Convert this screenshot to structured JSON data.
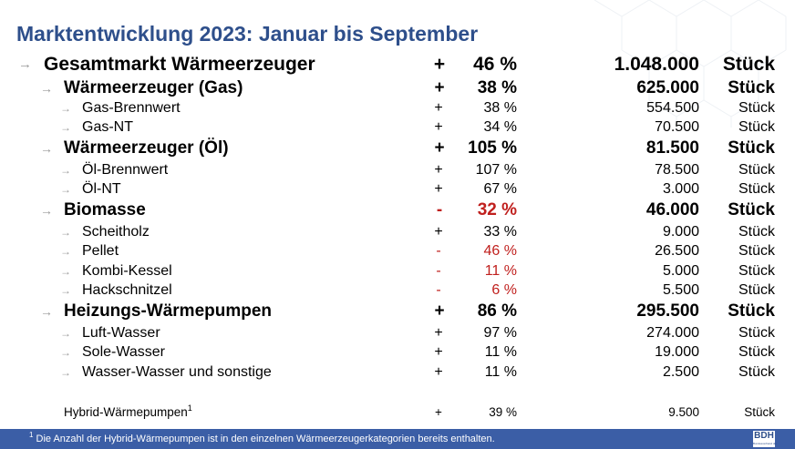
{
  "title": "Marktentwicklung 2023: Januar bis September",
  "arrow_icon": "→",
  "colors": {
    "title": "#2e4f8b",
    "negative": "#c0201e",
    "footer": "#3b5ea6",
    "arrow": "#9a9a9a"
  },
  "rows": [
    {
      "label": "Gesamtmarkt Wärmeerzeuger",
      "sign": "+",
      "percent": "46 %",
      "amount": "1.048.000",
      "unit": "Stück"
    },
    {
      "label": "Wärmeerzeuger (Gas)",
      "sign": "+",
      "percent": "38 %",
      "amount": "625.000",
      "unit": "Stück"
    },
    {
      "label": "Gas-Brennwert",
      "sign": "+",
      "percent": "38 %",
      "amount": "554.500",
      "unit": "Stück"
    },
    {
      "label": "Gas-NT",
      "sign": "+",
      "percent": "34 %",
      "amount": "70.500",
      "unit": "Stück"
    },
    {
      "label": "Wärmeerzeuger (Öl)",
      "sign": "+",
      "percent": "105 %",
      "amount": "81.500",
      "unit": "Stück"
    },
    {
      "label": "Öl-Brennwert",
      "sign": "+",
      "percent": "107 %",
      "amount": "78.500",
      "unit": "Stück"
    },
    {
      "label": "Öl-NT",
      "sign": "+",
      "percent": "67 %",
      "amount": "3.000",
      "unit": "Stück"
    },
    {
      "label": "Biomasse",
      "sign": "-",
      "percent": "32 %",
      "amount": "46.000",
      "unit": "Stück"
    },
    {
      "label": "Scheitholz",
      "sign": "+",
      "percent": "33 %",
      "amount": "9.000",
      "unit": "Stück"
    },
    {
      "label": "Pellet",
      "sign": "-",
      "percent": "46 %",
      "amount": "26.500",
      "unit": "Stück"
    },
    {
      "label": "Kombi-Kessel",
      "sign": "-",
      "percent": "11 %",
      "amount": "5.000",
      "unit": "Stück"
    },
    {
      "label": "Hackschnitzel",
      "sign": "-",
      "percent": "6 %",
      "amount": "5.500",
      "unit": "Stück"
    },
    {
      "label": "Heizungs-Wärmepumpen",
      "sign": "+",
      "percent": "86 %",
      "amount": "295.500",
      "unit": "Stück"
    },
    {
      "label": "Luft-Wasser",
      "sign": "+",
      "percent": "97 %",
      "amount": "274.000",
      "unit": "Stück"
    },
    {
      "label": "Sole-Wasser",
      "sign": "+",
      "percent": "11 %",
      "amount": "19.000",
      "unit": "Stück"
    },
    {
      "label": "Wasser-Wasser und sonstige",
      "sign": "+",
      "percent": "11 %",
      "amount": "2.500",
      "unit": "Stück"
    }
  ],
  "hybrid": {
    "label": "Hybrid-Wärmepumpen",
    "footnote_mark": "1",
    "sign": "+",
    "percent": "39 %",
    "amount": "9.500",
    "unit": "Stück"
  },
  "footnote": {
    "mark": "1",
    "text": " Die Anzahl der Hybrid-Wärmepumpen ist in den einzelnen Wärmeerzeugerkategorien bereits enthalten."
  },
  "logo": {
    "text": "BDH",
    "subtext": "Bundesverband der"
  }
}
